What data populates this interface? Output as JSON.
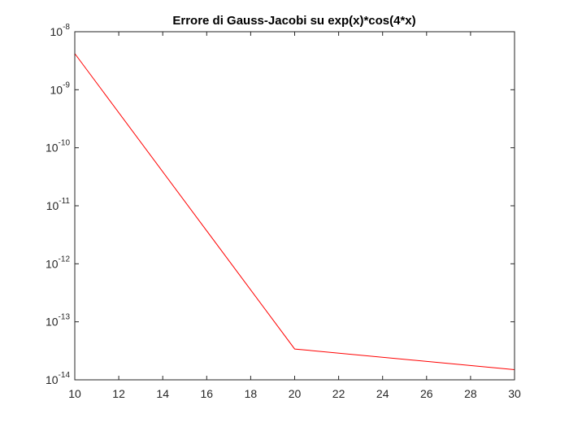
{
  "chart_data": {
    "type": "line",
    "title": "Errore di Gauss-Jacobi su exp(x)*cos(4*x)",
    "xlabel": "",
    "ylabel": "",
    "xlim": [
      10,
      30
    ],
    "ylim": [
      1e-14,
      1e-08
    ],
    "yscale": "log",
    "grid": false,
    "x_ticks": [
      10,
      12,
      14,
      16,
      18,
      20,
      22,
      24,
      26,
      28,
      30
    ],
    "y_ticks": [
      {
        "base": "10",
        "exp": "-14",
        "value": 1e-14
      },
      {
        "base": "10",
        "exp": "-13",
        "value": 1e-13
      },
      {
        "base": "10",
        "exp": "-12",
        "value": 1e-12
      },
      {
        "base": "10",
        "exp": "-11",
        "value": 1e-11
      },
      {
        "base": "10",
        "exp": "-10",
        "value": 1e-10
      },
      {
        "base": "10",
        "exp": "-9",
        "value": 1e-09
      },
      {
        "base": "10",
        "exp": "-8",
        "value": 1e-08
      }
    ],
    "series": [
      {
        "color": "#ff0000",
        "x": [
          10,
          20,
          30
        ],
        "y": [
          4.2e-09,
          3.4e-14,
          1.5e-14
        ]
      }
    ]
  }
}
